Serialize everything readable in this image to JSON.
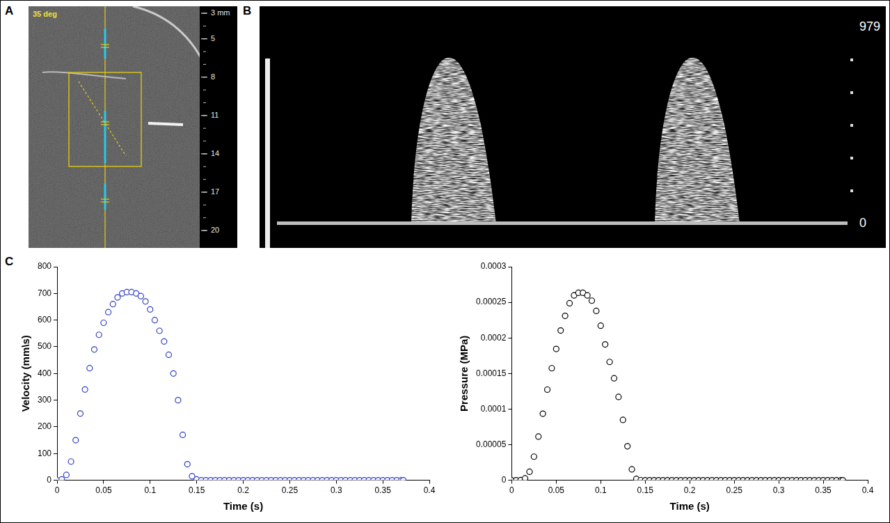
{
  "panel_labels": [
    "A",
    "B",
    "C"
  ],
  "ultrasound": {
    "annotation": "35 deg",
    "depth_ticks": [
      {
        "value": 3,
        "label": "3 mm"
      },
      5,
      8,
      11,
      14,
      17,
      20
    ]
  },
  "doppler": {
    "scale_ticks": [
      979,
      0
    ]
  },
  "chart_data": [
    {
      "type": "scatter",
      "xlabel": "Time (s)",
      "ylabel": "Velocity (mm\\s)",
      "marker": "circle",
      "color": "#2f3cc4",
      "grid": false,
      "xlim": [
        0,
        0.4
      ],
      "xticks": [
        0,
        0.05,
        0.1,
        0.15,
        0.2,
        0.25,
        0.3,
        0.35,
        0.4
      ],
      "ylim": [
        0,
        800
      ],
      "yticks": [
        0,
        100,
        200,
        300,
        400,
        500,
        600,
        700,
        800
      ],
      "x": [
        0,
        0.005,
        0.01,
        0.015,
        0.02,
        0.025,
        0.03,
        0.035,
        0.04,
        0.045,
        0.05,
        0.055,
        0.06,
        0.065,
        0.07,
        0.075,
        0.08,
        0.085,
        0.09,
        0.095,
        0.1,
        0.105,
        0.11,
        0.115,
        0.12,
        0.125,
        0.13,
        0.135,
        0.14,
        0.145,
        0.15,
        0.155,
        0.16,
        0.165,
        0.17,
        0.175,
        0.18,
        0.185,
        0.19,
        0.195,
        0.2,
        0.205,
        0.21,
        0.215,
        0.22,
        0.225,
        0.23,
        0.235,
        0.24,
        0.245,
        0.25,
        0.255,
        0.26,
        0.265,
        0.27,
        0.275,
        0.28,
        0.285,
        0.29,
        0.295,
        0.3,
        0.305,
        0.31,
        0.315,
        0.32,
        0.325,
        0.33,
        0.335,
        0.34,
        0.345,
        0.35,
        0.355,
        0.36,
        0.365,
        0.37,
        0.372
      ],
      "values": [
        0,
        3,
        20,
        70,
        150,
        250,
        340,
        420,
        490,
        545,
        590,
        630,
        660,
        685,
        700,
        705,
        705,
        700,
        690,
        670,
        640,
        600,
        560,
        520,
        470,
        400,
        300,
        170,
        60,
        15,
        3,
        0,
        0,
        0,
        0,
        0,
        0,
        0,
        0,
        0,
        0,
        0,
        0,
        0,
        0,
        0,
        0,
        0,
        0,
        0,
        0,
        0,
        0,
        0,
        0,
        0,
        0,
        0,
        0,
        0,
        0,
        0,
        0,
        0,
        0,
        0,
        0,
        0,
        0,
        0,
        0,
        0,
        0,
        0,
        0,
        0
      ]
    },
    {
      "type": "scatter",
      "xlabel": "Time (s)",
      "ylabel": "Pressure (MPa)",
      "marker": "circle",
      "color": "#000000",
      "grid": false,
      "xlim": [
        0,
        0.4
      ],
      "xticks": [
        0,
        0.05,
        0.1,
        0.15,
        0.2,
        0.25,
        0.3,
        0.35,
        0.4
      ],
      "ylim": [
        0,
        0.0003
      ],
      "yticks": [
        0,
        5e-05,
        0.0001,
        0.00015,
        0.0002,
        0.00025,
        0.0003
      ],
      "x": [
        0,
        0.005,
        0.01,
        0.015,
        0.02,
        0.025,
        0.03,
        0.035,
        0.04,
        0.045,
        0.05,
        0.055,
        0.06,
        0.065,
        0.07,
        0.075,
        0.08,
        0.085,
        0.09,
        0.095,
        0.1,
        0.105,
        0.11,
        0.115,
        0.12,
        0.125,
        0.13,
        0.135,
        0.14,
        0.145,
        0.15,
        0.155,
        0.16,
        0.165,
        0.17,
        0.175,
        0.18,
        0.185,
        0.19,
        0.195,
        0.2,
        0.205,
        0.21,
        0.215,
        0.22,
        0.225,
        0.23,
        0.235,
        0.24,
        0.245,
        0.25,
        0.255,
        0.26,
        0.265,
        0.27,
        0.275,
        0.28,
        0.285,
        0.29,
        0.295,
        0.3,
        0.305,
        0.31,
        0.315,
        0.32,
        0.325,
        0.33,
        0.335,
        0.34,
        0.345,
        0.35,
        0.355,
        0.36,
        0.365,
        0.37,
        0.372
      ],
      "values": [
        0,
        0,
        2e-07,
        2.6e-06,
        1.19e-05,
        3.31e-05,
        6.13e-05,
        9.35e-05,
        0.0001273,
        0.0001574,
        0.0001845,
        0.0002104,
        0.0002309,
        0.0002487,
        0.0002597,
        0.0002634,
        0.0002634,
        0.0002597,
        0.0002523,
        0.0002379,
        0.0002171,
        0.0001908,
        0.0001662,
        0.0001433,
        0.0001171,
        8.48e-05,
        4.77e-05,
        1.53e-05,
        1.9e-06,
        1e-07,
        0,
        0,
        0,
        0,
        0,
        0,
        0,
        0,
        0,
        0,
        0,
        0,
        0,
        0,
        0,
        0,
        0,
        0,
        0,
        0,
        0,
        0,
        0,
        0,
        0,
        0,
        0,
        0,
        0,
        0,
        0,
        0,
        0,
        0,
        0,
        0,
        0,
        0,
        0,
        0,
        0,
        0,
        0,
        0,
        0,
        0
      ]
    }
  ]
}
